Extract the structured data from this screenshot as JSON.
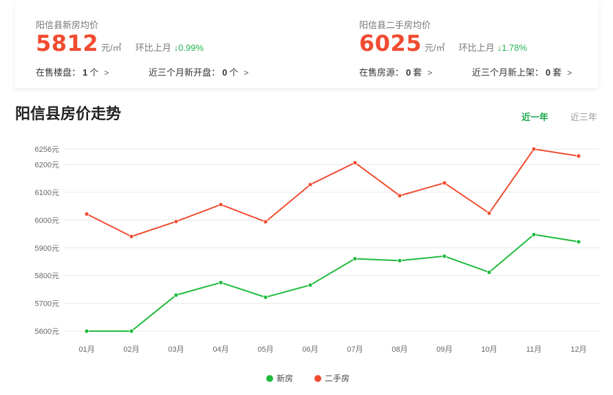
{
  "stats": {
    "new": {
      "title": "阳信县新房均价",
      "price": "5812",
      "unit": "元/㎡",
      "mom_label": "环比上月",
      "mom_value": "↓0.99%",
      "link1_label": "在售楼盘：",
      "link1_value": "1",
      "link1_suffix": "个",
      "link2_label": "近三个月新开盘：",
      "link2_value": "0",
      "link2_suffix": "个"
    },
    "second": {
      "title": "阳信县二手房均价",
      "price": "6025",
      "unit": "元/㎡",
      "mom_label": "环比上月",
      "mom_value": "↓1.78%",
      "link1_label": "在售房源：",
      "link1_value": "0",
      "link1_suffix": "套",
      "link2_label": "近三个月新上架：",
      "link2_value": "0",
      "link2_suffix": "套"
    },
    "chevron": ">"
  },
  "chart_header": {
    "title": "阳信县房价走势",
    "tab_one_year": "近一年",
    "tab_three_years": "近三年"
  },
  "colors": {
    "new": "#1dbb3c",
    "second": "#f04b30",
    "grid": "#e8e8e8"
  },
  "chart_data": {
    "type": "line",
    "title": "",
    "xlabel": "",
    "ylabel": "",
    "categories": [
      "01月",
      "02月",
      "03月",
      "04月",
      "05月",
      "06月",
      "07月",
      "08月",
      "09月",
      "10月",
      "11月",
      "12月"
    ],
    "y_ticks": [
      5600,
      5700,
      5800,
      5900,
      6000,
      6100,
      6200,
      6256
    ],
    "y_tick_labels": [
      "5600元",
      "5700元",
      "5800元",
      "5900元",
      "6000元",
      "6100元",
      "6200元",
      "6256元"
    ],
    "ylim": [
      5600,
      6256
    ],
    "grid": true,
    "legend_position": "bottom",
    "series": [
      {
        "name": "新房",
        "values": [
          5600,
          5600,
          5730,
          5775,
          5722,
          5766,
          5861,
          5854,
          5870,
          5812,
          5948,
          5922
        ]
      },
      {
        "name": "二手房",
        "values": [
          6022,
          5941,
          5995,
          6056,
          5994,
          6128,
          6207,
          6088,
          6134,
          6025,
          6256,
          6231
        ]
      }
    ]
  }
}
